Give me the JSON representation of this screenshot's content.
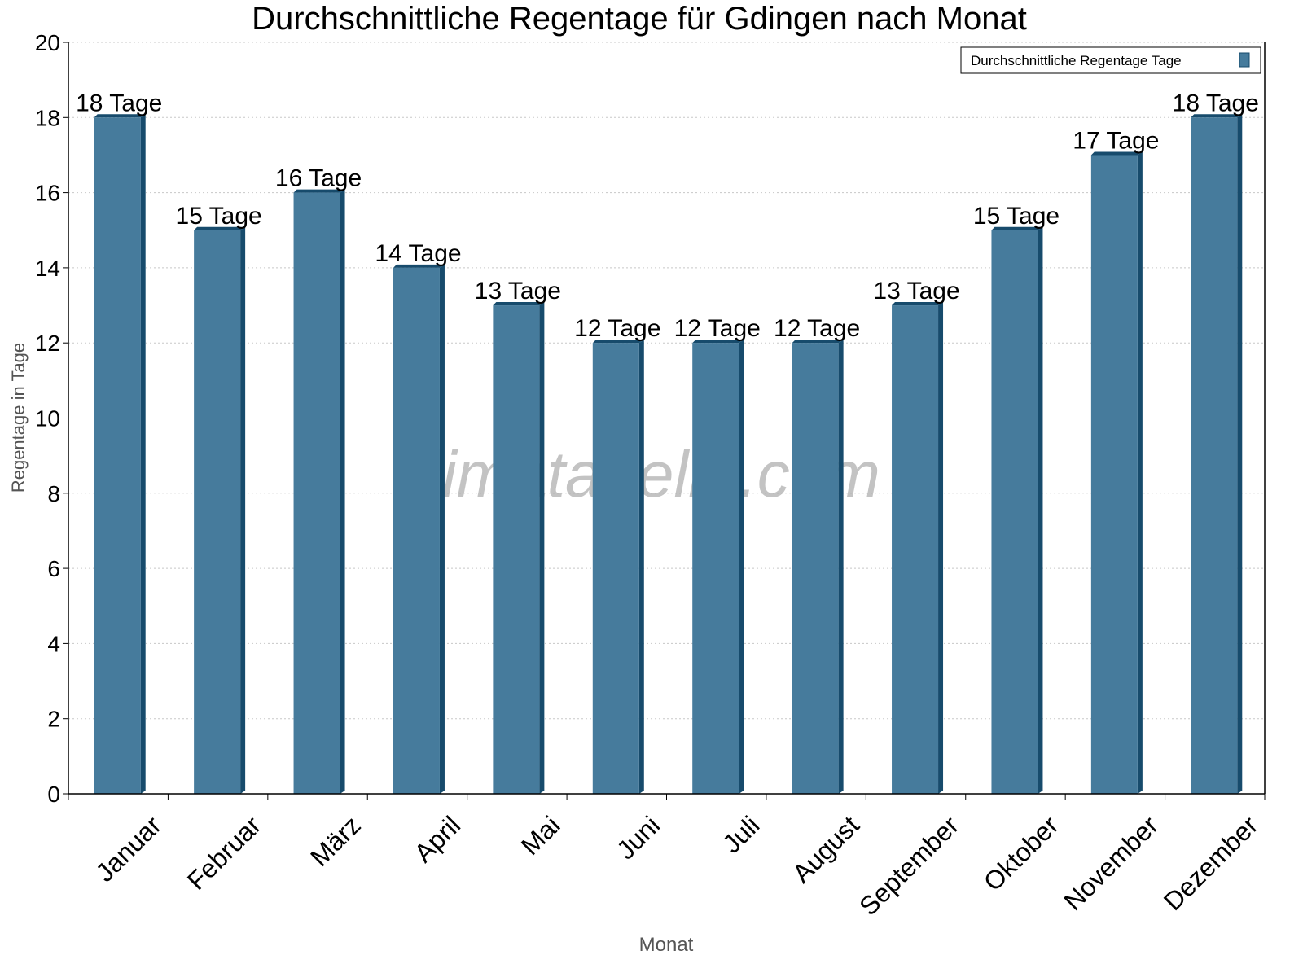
{
  "chart_data": {
    "type": "bar",
    "title": "Durchschnittliche Regentage für Gdingen nach Monat",
    "xlabel": "Monat",
    "ylabel": "Regentage in Tage",
    "ylim": [
      0,
      20
    ],
    "yticks": [
      0,
      2,
      4,
      6,
      8,
      10,
      12,
      14,
      16,
      18,
      20
    ],
    "grid": true,
    "legend_placement": "top-right",
    "categories": [
      "Januar",
      "Februar",
      "März",
      "April",
      "Mai",
      "Juni",
      "Juli",
      "August",
      "September",
      "Oktober",
      "November",
      "Dezember"
    ],
    "series": [
      {
        "name": "Durchschnittliche Regentage Tage",
        "values": [
          18,
          15,
          16,
          14,
          13,
          12,
          12,
          12,
          13,
          15,
          17,
          18
        ]
      }
    ],
    "data_labels": [
      "18 Tage",
      "15 Tage",
      "16 Tage",
      "14 Tage",
      "13 Tage",
      "12 Tage",
      "12 Tage",
      "12 Tage",
      "13 Tage",
      "15 Tage",
      "17 Tage",
      "18 Tage"
    ],
    "watermark": "klimatabelle.com",
    "colors": {
      "bar": "#467b9c",
      "bar_side": "#174b6c",
      "grid": "#c8c8c8",
      "axis_label": "#555555"
    }
  }
}
